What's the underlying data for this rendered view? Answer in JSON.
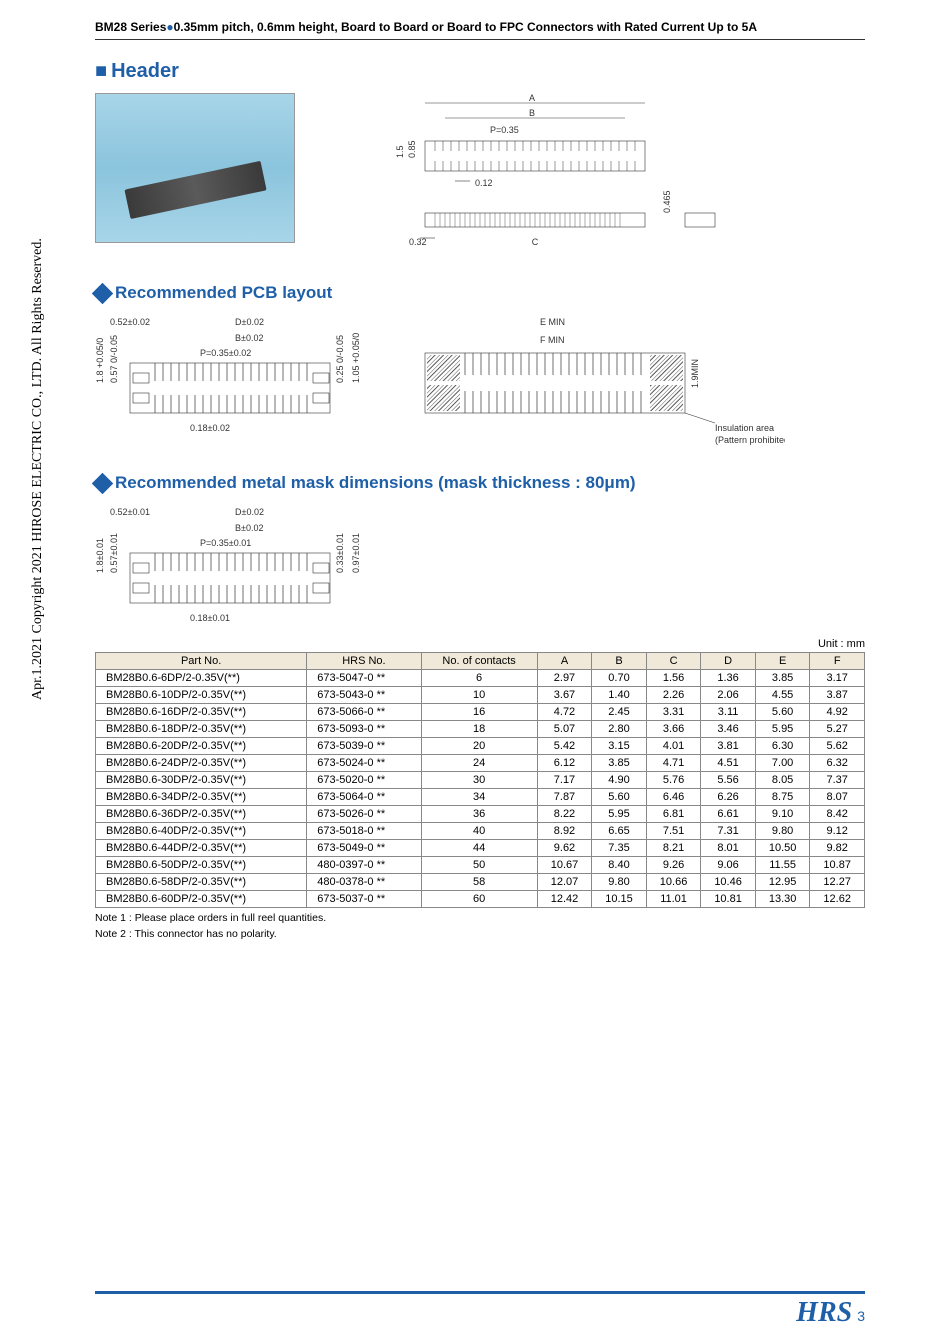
{
  "header": {
    "series": "BM28 Series",
    "desc": "0.35mm pitch, 0.6mm height, Board to Board or Board to FPC Connectors with Rated Current Up to 5A"
  },
  "side_copyright": "Apr.1.2021 Copyright 2021 HIROSE ELECTRIC CO., LTD. All Rights Reserved.",
  "sections": {
    "main": "Header",
    "pcb": "Recommended PCB layout",
    "mask": "Recommended metal mask dimensions (mask thickness : 80μm)"
  },
  "drawing1": {
    "A": "A",
    "B": "B",
    "C": "C",
    "P": "P=0.35",
    "h1": "1.5",
    "h2": "0.85",
    "w1": "0.12",
    "w2": "0.32",
    "w3": "0.465"
  },
  "drawing2": {
    "t1": "0.52±0.02",
    "t2": "D±0.02",
    "t3": "B±0.02",
    "t4": "P=0.35±0.02",
    "t5": "0.18±0.02",
    "v1": "1.8 +0.05/0",
    "v2": "0.57 0/-0.05",
    "v3": "0.25 0/-0.05",
    "v4": "1.05 +0.05/0"
  },
  "drawing3": {
    "e": "E MIN",
    "f": "F MIN",
    "h": "1.9MIN",
    "ins1": "Insulation area",
    "ins2": "(Pattern prohibited area)"
  },
  "drawing4": {
    "t1": "0.52±0.01",
    "t2": "D±0.02",
    "t3": "B±0.02",
    "t4": "P=0.35±0.01",
    "t5": "0.18±0.01",
    "v1": "1.8±0.01",
    "v2": "0.57±0.01",
    "v3": "0.33±0.01",
    "v4": "0.97±0.01"
  },
  "table": {
    "unit": "Unit : mm",
    "columns": [
      "Part No.",
      "HRS No.",
      "No. of contacts",
      "A",
      "B",
      "C",
      "D",
      "E",
      "F"
    ],
    "col_align": [
      "left",
      "left",
      "center",
      "center",
      "center",
      "center",
      "center",
      "center",
      "center"
    ],
    "rows": [
      [
        "BM28B0.6-6DP/2-0.35V(**)",
        "673-5047-0 **",
        "6",
        "2.97",
        "0.70",
        "1.56",
        "1.36",
        "3.85",
        "3.17"
      ],
      [
        "BM28B0.6-10DP/2-0.35V(**)",
        "673-5043-0 **",
        "10",
        "3.67",
        "1.40",
        "2.26",
        "2.06",
        "4.55",
        "3.87"
      ],
      [
        "BM28B0.6-16DP/2-0.35V(**)",
        "673-5066-0 **",
        "16",
        "4.72",
        "2.45",
        "3.31",
        "3.11",
        "5.60",
        "4.92"
      ],
      [
        "BM28B0.6-18DP/2-0.35V(**)",
        "673-5093-0 **",
        "18",
        "5.07",
        "2.80",
        "3.66",
        "3.46",
        "5.95",
        "5.27"
      ],
      [
        "BM28B0.6-20DP/2-0.35V(**)",
        "673-5039-0 **",
        "20",
        "5.42",
        "3.15",
        "4.01",
        "3.81",
        "6.30",
        "5.62"
      ],
      [
        "BM28B0.6-24DP/2-0.35V(**)",
        "673-5024-0 **",
        "24",
        "6.12",
        "3.85",
        "4.71",
        "4.51",
        "7.00",
        "6.32"
      ],
      [
        "BM28B0.6-30DP/2-0.35V(**)",
        "673-5020-0 **",
        "30",
        "7.17",
        "4.90",
        "5.76",
        "5.56",
        "8.05",
        "7.37"
      ],
      [
        "BM28B0.6-34DP/2-0.35V(**)",
        "673-5064-0 **",
        "34",
        "7.87",
        "5.60",
        "6.46",
        "6.26",
        "8.75",
        "8.07"
      ],
      [
        "BM28B0.6-36DP/2-0.35V(**)",
        "673-5026-0 **",
        "36",
        "8.22",
        "5.95",
        "6.81",
        "6.61",
        "9.10",
        "8.42"
      ],
      [
        "BM28B0.6-40DP/2-0.35V(**)",
        "673-5018-0 **",
        "40",
        "8.92",
        "6.65",
        "7.51",
        "7.31",
        "9.80",
        "9.12"
      ],
      [
        "BM28B0.6-44DP/2-0.35V(**)",
        "673-5049-0 **",
        "44",
        "9.62",
        "7.35",
        "8.21",
        "8.01",
        "10.50",
        "9.82"
      ],
      [
        "BM28B0.6-50DP/2-0.35V(**)",
        "480-0397-0 **",
        "50",
        "10.67",
        "8.40",
        "9.26",
        "9.06",
        "11.55",
        "10.87"
      ],
      [
        "BM28B0.6-58DP/2-0.35V(**)",
        "480-0378-0 **",
        "58",
        "12.07",
        "9.80",
        "10.66",
        "10.46",
        "12.95",
        "12.27"
      ],
      [
        "BM28B0.6-60DP/2-0.35V(**)",
        "673-5037-0 **",
        "60",
        "12.42",
        "10.15",
        "11.01",
        "10.81",
        "13.30",
        "12.62"
      ]
    ]
  },
  "notes": {
    "n1": "Note 1 : Please place orders in full reel quantities.",
    "n2": "Note 2 : This connector has no polarity."
  },
  "footer": {
    "logo": "HRS",
    "page": "3"
  },
  "colors": {
    "accent": "#1e5fa8",
    "th_bg": "#f0e8d8",
    "border": "#888888"
  }
}
